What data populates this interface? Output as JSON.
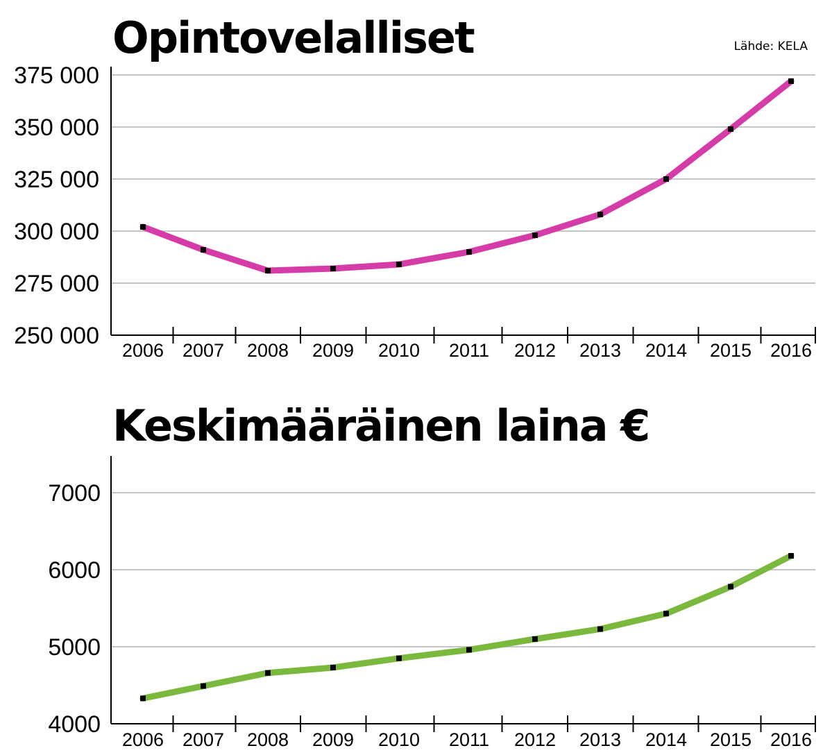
{
  "source_note": "Lähde: KELA",
  "chart_data": [
    {
      "type": "line",
      "title": "Opintovelalliset",
      "x": [
        "2006",
        "2007",
        "2008",
        "2009",
        "2010",
        "2011",
        "2012",
        "2013",
        "2014",
        "2015",
        "2016"
      ],
      "ylim": [
        250000,
        375000
      ],
      "yticks": [
        250000,
        275000,
        300000,
        325000,
        350000,
        375000
      ],
      "ytick_labels": [
        "250 000",
        "275 000",
        "300 000",
        "325 000",
        "350 000",
        "375 000"
      ],
      "grid": true,
      "series": [
        {
          "values": [
            302000,
            291000,
            281000,
            282000,
            284000,
            290000,
            298000,
            308000,
            325000,
            349000,
            372000
          ],
          "color": "#d63ca8"
        }
      ]
    },
    {
      "type": "line",
      "title": "Keskimääräinen laina €",
      "x": [
        "2006",
        "2007",
        "2008",
        "2009",
        "2010",
        "2011",
        "2012",
        "2013",
        "2014",
        "2015",
        "2016"
      ],
      "ylim": [
        4000,
        7300
      ],
      "yticks": [
        4000,
        5000,
        6000,
        7000
      ],
      "ytick_labels": [
        "4000",
        "5000",
        "6000",
        "7000"
      ],
      "grid": true,
      "series": [
        {
          "values": [
            4330,
            4490,
            4660,
            4730,
            4850,
            4960,
            5100,
            5230,
            5430,
            5780,
            6180
          ],
          "color": "#7ab93e"
        }
      ]
    }
  ]
}
